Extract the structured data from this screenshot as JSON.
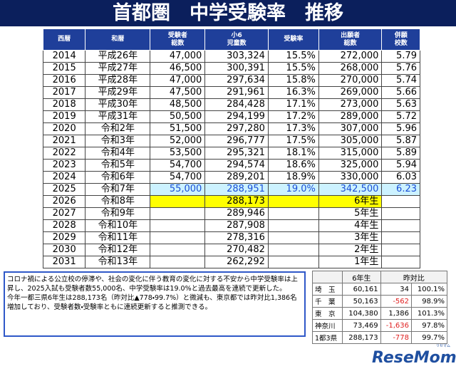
{
  "title": "首都圏　中学受験率　推移",
  "table": {
    "header": [
      [
        "西暦"
      ],
      [
        "和暦"
      ],
      [
        "受験者",
        "総数"
      ],
      [
        "小6",
        "児童数"
      ],
      [
        "受験率"
      ],
      [
        "出願者",
        "総数"
      ],
      [
        "併願",
        "校数"
      ]
    ],
    "rows": [
      [
        "2014",
        "平成26年",
        "47,000",
        "303,324",
        "15.5%",
        "272,000",
        "5.79"
      ],
      [
        "2015",
        "平成27年",
        "46,500",
        "300,391",
        "15.5%",
        "268,000",
        "5.76"
      ],
      [
        "2016",
        "平成28年",
        "47,000",
        "297,634",
        "15.8%",
        "270,000",
        "5.74"
      ],
      [
        "2017",
        "平成29年",
        "47,500",
        "291,961",
        "16.3%",
        "269,000",
        "5.66"
      ],
      [
        "2018",
        "平成30年",
        "48,500",
        "284,428",
        "17.1%",
        "273,000",
        "5.63"
      ],
      [
        "2019",
        "平成31年",
        "50,500",
        "294,199",
        "17.2%",
        "289,000",
        "5.72"
      ],
      [
        "2020",
        "令和2年",
        "51,500",
        "297,280",
        "17.3%",
        "307,000",
        "5.96"
      ],
      [
        "2021",
        "令和3年",
        "52,000",
        "296,777",
        "17.5%",
        "305,000",
        "5.87"
      ],
      [
        "2022",
        "令和4年",
        "53,500",
        "295,321",
        "18.1%",
        "315,000",
        "5.89"
      ],
      [
        "2023",
        "令和5年",
        "54,700",
        "294,574",
        "18.6%",
        "325,000",
        "5.94"
      ],
      [
        "2024",
        "令和6年",
        "54,700",
        "289,201",
        "18.9%",
        "330,000",
        "6.03"
      ],
      [
        "2025",
        "令和7年",
        "55,000",
        "288,951",
        "19.0%",
        "342,500",
        "6.23"
      ],
      [
        "2026",
        "令和8年",
        null,
        "288,173",
        null,
        "6年生",
        null
      ],
      [
        "2027",
        "令和9年",
        null,
        "289,946",
        null,
        "5年生",
        null
      ],
      [
        "2028",
        "令和10年",
        null,
        "287,908",
        null,
        "4年生",
        null
      ],
      [
        "2029",
        "令和11年",
        null,
        "278,316",
        null,
        "3年生",
        null
      ],
      [
        "2030",
        "令和12年",
        null,
        "270,482",
        null,
        "2年生",
        null
      ],
      [
        "2031",
        "令和13年",
        null,
        "262,292",
        null,
        "1年生",
        null
      ]
    ]
  },
  "note": [
    "コロナ禍による公立校の停滞や、社会の変化に伴う教育の変化に対する不安から中学受験率は上昇し、2025入試も受験者数55,000名、中学受験率は19.0%と過去最高を連続で更新した。",
    "今年一都三県6年生は288,173名（昨対比▲778・99.7%）と微減も、東京都では昨対比1,386名増加しており、受験者数・受験率ともに連続更新すると推測できる。"
  ],
  "prefecture_table": {
    "header": [
      "6年生",
      "昨対比"
    ],
    "rows": [
      [
        "埼　玉",
        "60,161",
        "34",
        "100.1%"
      ],
      [
        "千　葉",
        "50,163",
        "-562",
        "98.9%"
      ],
      [
        "東　京",
        "104,380",
        "1,386",
        "101.3%"
      ],
      [
        "神奈川",
        "73,469",
        "-1,636",
        "97.8%"
      ],
      [
        "1都3県",
        "288,173",
        "-778",
        "99.7%"
      ]
    ]
  },
  "logo": {
    "text": "ReseMom",
    "kana": "リセマム"
  }
}
